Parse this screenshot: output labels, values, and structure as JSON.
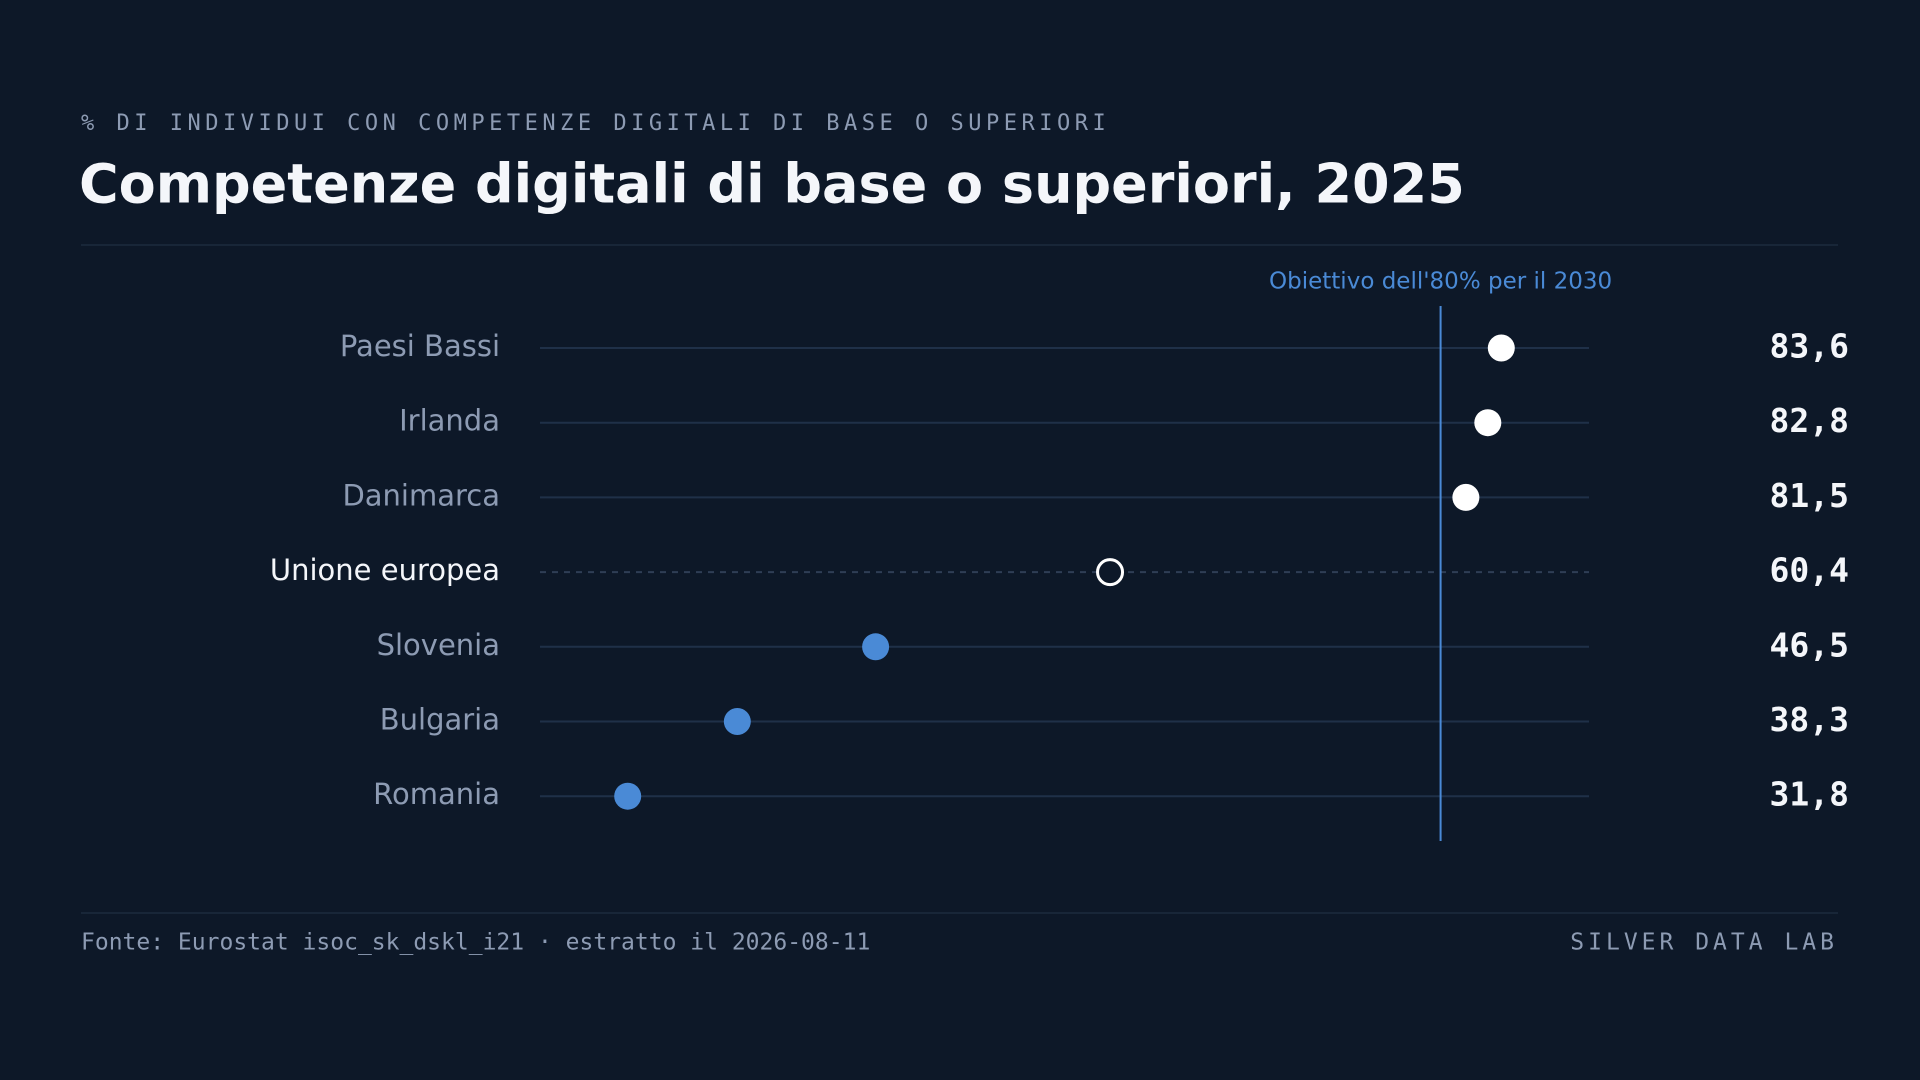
{
  "chart_data": {
    "type": "dot",
    "kicker": "% DI INDIVIDUI CON COMPETENZE DIGITALI DI BASE O SUPERIORI",
    "title": "Competenze digitali di base o superiori, 2025",
    "categories": [
      "Paesi Bassi",
      "Irlanda",
      "Danimarca",
      "Unione europea",
      "Slovenia",
      "Bulgaria",
      "Romania"
    ],
    "values": [
      83.6,
      82.8,
      81.5,
      60.4,
      46.5,
      38.3,
      31.8
    ],
    "value_labels": [
      "83,6",
      "82,8",
      "81,5",
      "60,4",
      "46,5",
      "38,3",
      "31,8"
    ],
    "colors": [
      "#ffffff",
      "#ffffff",
      "#ffffff",
      "#ffffff",
      "#4a8ad6",
      "#4a8ad6",
      "#4a8ad6"
    ],
    "markers": [
      "filled",
      "filled",
      "filled",
      "hollow",
      "filled",
      "filled",
      "filled"
    ],
    "xlim": [
      26.6,
      88.8
    ],
    "reference": {
      "value": 80,
      "label": "Obiettivo dell'80% per il 2030",
      "color": "#4a8ad6"
    },
    "source": "Fonte: Eurostat isoc_sk_dskl_i21 · estratto il 2026-08-11",
    "brand": "SILVER DATA LAB"
  }
}
